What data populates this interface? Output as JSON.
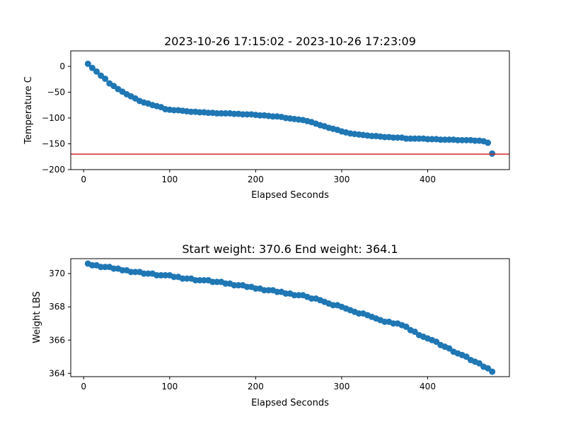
{
  "chart_data": [
    {
      "type": "scatter",
      "title": "2023-10-26 17:15:02 - 2023-10-26 17:23:09",
      "xlabel": "Elapsed Seconds",
      "ylabel": "Temperature C",
      "xlim": [
        -15,
        495
      ],
      "ylim": [
        -200,
        30
      ],
      "xticks": [
        0,
        100,
        200,
        300,
        400
      ],
      "yticks": [
        0,
        -50,
        -100,
        -150,
        -200
      ],
      "grid": false,
      "marker_color": "#1f77b4",
      "reference_line": {
        "y": -170,
        "color": "#d62728"
      },
      "x": [
        5,
        10,
        15,
        20,
        25,
        30,
        35,
        40,
        45,
        50,
        55,
        60,
        65,
        70,
        75,
        80,
        85,
        90,
        95,
        100,
        105,
        110,
        115,
        120,
        125,
        130,
        135,
        140,
        145,
        150,
        155,
        160,
        165,
        170,
        175,
        180,
        185,
        190,
        195,
        200,
        205,
        210,
        215,
        220,
        225,
        230,
        235,
        240,
        245,
        250,
        255,
        260,
        265,
        270,
        275,
        280,
        285,
        290,
        295,
        300,
        305,
        310,
        315,
        320,
        325,
        330,
        335,
        340,
        345,
        350,
        355,
        360,
        365,
        370,
        375,
        380,
        385,
        390,
        395,
        400,
        405,
        410,
        415,
        420,
        425,
        430,
        435,
        440,
        445,
        450,
        455,
        460,
        465,
        470,
        475
      ],
      "y": [
        5,
        -3,
        -10,
        -18,
        -24,
        -33,
        -38,
        -44,
        -49,
        -54,
        -58,
        -62,
        -67,
        -70,
        -72,
        -75,
        -77,
        -79,
        -83,
        -84,
        -85,
        -85,
        -86,
        -87,
        -88,
        -88,
        -89,
        -89,
        -90,
        -90,
        -91,
        -91,
        -91,
        -91,
        -92,
        -92,
        -93,
        -93,
        -93,
        -94,
        -95,
        -95,
        -96,
        -97,
        -97,
        -98,
        -100,
        -101,
        -102,
        -103,
        -104,
        -106,
        -108,
        -111,
        -114,
        -116,
        -119,
        -121,
        -123,
        -126,
        -128,
        -130,
        -131,
        -132,
        -133,
        -134,
        -135,
        -135,
        -136,
        -137,
        -137,
        -138,
        -138,
        -138,
        -140,
        -140,
        -140,
        -140,
        -140,
        -141,
        -141,
        -141,
        -142,
        -142,
        -142,
        -142,
        -143,
        -143,
        -143,
        -143,
        -144,
        -144,
        -145,
        -148,
        -169
      ]
    },
    {
      "type": "scatter",
      "title": "Start weight: 370.6 End weight: 364.1",
      "xlabel": "Elapsed Seconds",
      "ylabel": "Weight LBS",
      "xlim": [
        -15,
        495
      ],
      "ylim": [
        363.8,
        370.9
      ],
      "xticks": [
        0,
        100,
        200,
        300,
        400
      ],
      "yticks": [
        364,
        366,
        368,
        370
      ],
      "grid": false,
      "marker_color": "#1f77b4",
      "x": [
        5,
        10,
        15,
        20,
        25,
        30,
        35,
        40,
        45,
        50,
        55,
        60,
        65,
        70,
        75,
        80,
        85,
        90,
        95,
        100,
        105,
        110,
        115,
        120,
        125,
        130,
        135,
        140,
        145,
        150,
        155,
        160,
        165,
        170,
        175,
        180,
        185,
        190,
        195,
        200,
        205,
        210,
        215,
        220,
        225,
        230,
        235,
        240,
        245,
        250,
        255,
        260,
        265,
        270,
        275,
        280,
        285,
        290,
        295,
        300,
        305,
        310,
        315,
        320,
        325,
        330,
        335,
        340,
        345,
        350,
        355,
        360,
        365,
        370,
        375,
        380,
        385,
        390,
        395,
        400,
        405,
        410,
        415,
        420,
        425,
        430,
        435,
        440,
        445,
        450,
        455,
        460,
        465,
        470,
        475
      ],
      "y": [
        370.6,
        370.5,
        370.5,
        370.4,
        370.4,
        370.4,
        370.3,
        370.3,
        370.2,
        370.2,
        370.1,
        370.1,
        370.1,
        370.0,
        370.0,
        370.0,
        369.9,
        369.9,
        369.9,
        369.9,
        369.8,
        369.8,
        369.7,
        369.7,
        369.7,
        369.6,
        369.6,
        369.6,
        369.6,
        369.5,
        369.5,
        369.5,
        369.4,
        369.4,
        369.3,
        369.3,
        369.3,
        369.2,
        369.2,
        369.1,
        369.1,
        369.0,
        369.0,
        369.0,
        368.9,
        368.9,
        368.8,
        368.8,
        368.7,
        368.7,
        368.7,
        368.6,
        368.5,
        368.5,
        368.4,
        368.3,
        368.2,
        368.1,
        368.1,
        368.0,
        367.9,
        367.8,
        367.7,
        367.6,
        367.6,
        367.5,
        367.4,
        367.3,
        367.2,
        367.1,
        367.1,
        367.0,
        367.0,
        366.9,
        366.8,
        366.6,
        366.5,
        366.3,
        366.2,
        366.1,
        366.0,
        365.9,
        365.7,
        365.6,
        365.5,
        365.3,
        365.2,
        365.1,
        365.0,
        364.8,
        364.7,
        364.6,
        364.4,
        364.3,
        364.1
      ]
    }
  ]
}
